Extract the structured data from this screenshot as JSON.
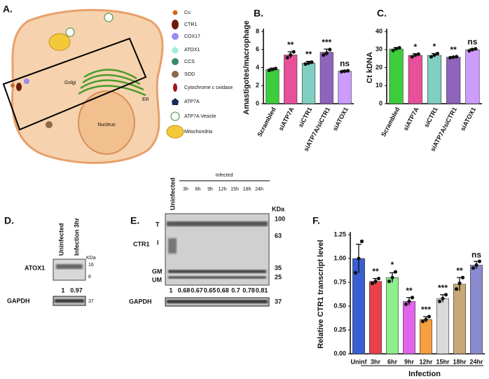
{
  "chart_data": [
    {
      "type": "bar",
      "panel": "B.",
      "ylabel": "Amastigotes/macrophage",
      "categories": [
        "Scrambled",
        "siATP7A",
        "siCTR1",
        "siATP7A/siCTR1",
        "siATOX1"
      ],
      "values": [
        3.8,
        5.4,
        4.5,
        5.7,
        3.6
      ],
      "errors": [
        0.15,
        0.35,
        0.2,
        0.35,
        0.1
      ],
      "points": [
        [
          3.7,
          3.8,
          3.9
        ],
        [
          5.1,
          5.4,
          5.75
        ],
        [
          4.4,
          4.5,
          4.6
        ],
        [
          5.4,
          5.6,
          6.0
        ],
        [
          3.55,
          3.6,
          3.65
        ]
      ],
      "annotations": [
        null,
        "**",
        "**",
        "***",
        "ns"
      ],
      "colors": [
        "#3ccc3c",
        "#e8509c",
        "#80cfc2",
        "#8e64bc",
        "#cc9cff"
      ],
      "ylim": [
        0,
        8
      ],
      "yticks": [
        0,
        2,
        4,
        6,
        8
      ]
    },
    {
      "type": "bar",
      "panel": "C.",
      "ylabel": "Ct kDNA",
      "categories": [
        "Scrambled",
        "siATP7A",
        "siCTR1",
        "siATP7A/siCTR1",
        "siATOX1"
      ],
      "values": [
        30.3,
        26.8,
        26.8,
        25.8,
        29.9
      ],
      "errors": [
        0.8,
        0.9,
        1.0,
        0.3,
        0.6
      ],
      "points": [
        [
          29.5,
          30.5,
          31
        ],
        [
          26,
          27,
          27.5
        ],
        [
          26,
          27,
          27.8
        ],
        [
          25.5,
          25.8,
          26.1
        ],
        [
          29.3,
          30,
          30.4
        ]
      ],
      "annotations": [
        null,
        "*",
        "*",
        "**",
        "ns"
      ],
      "colors": [
        "#3ccc3c",
        "#e8509c",
        "#80cfc2",
        "#8e64bc",
        "#cc9cff"
      ],
      "ylim": [
        0,
        40
      ],
      "yticks": [
        0,
        10,
        20,
        30,
        40
      ]
    },
    {
      "type": "bar",
      "panel": "F.",
      "ylabel": "Relative CTR1 transcript level",
      "xlabel": "Infection",
      "categories": [
        "Uninf",
        "3hr",
        "6hr",
        "9hr",
        "12hr",
        "15hr",
        "18hr",
        "24hr"
      ],
      "values": [
        1.0,
        0.76,
        0.8,
        0.55,
        0.36,
        0.58,
        0.73,
        0.93
      ],
      "errors": [
        0.15,
        0.03,
        0.05,
        0.04,
        0.03,
        0.04,
        0.07,
        0.04
      ],
      "points": [
        [
          0.85,
          1.0,
          1.18
        ],
        [
          0.74,
          0.76,
          0.79
        ],
        [
          0.76,
          0.8,
          0.86
        ],
        [
          0.52,
          0.55,
          0.59
        ],
        [
          0.34,
          0.36,
          0.39
        ],
        [
          0.55,
          0.58,
          0.62
        ],
        [
          0.68,
          0.74,
          0.8
        ],
        [
          0.9,
          0.93,
          0.97
        ]
      ],
      "annotations": [
        null,
        "**",
        "*",
        "**",
        "***",
        "***",
        "**",
        "ns"
      ],
      "colors": [
        "#3a5fd0",
        "#e8414a",
        "#8cf08c",
        "#e064ec",
        "#f5a040",
        "#dadada",
        "#c8a878",
        "#8a8ad0"
      ],
      "ylim": [
        0,
        1.25
      ],
      "yticks": [
        {
          "value": 0,
          "label": "0.00"
        },
        {
          "value": 0.25,
          "label": "0.25"
        },
        {
          "value": 0.5,
          "label": "0.50"
        },
        {
          "value": 0.75,
          "label": "0.75"
        },
        {
          "value": 1,
          "label": "1.00"
        },
        {
          "value": 1.25,
          "label": "1.25"
        }
      ]
    }
  ],
  "diagram": {
    "panel": "A.",
    "golgi": "Golgi",
    "er": "ER",
    "nucleus": "Nucleus",
    "legend": [
      "Cu",
      "CTR1",
      "COX17",
      "ATOX1",
      "CCS",
      "SOD",
      "Cytochrome c oxidase",
      "ATP7A",
      "ATP7A Vesicle",
      "Mitochondria"
    ]
  },
  "blot_d": {
    "panel": "D.",
    "lanes": [
      "Uninfected",
      "Infection 3hr"
    ],
    "kda": "KDa",
    "markers": [
      "16",
      "8"
    ],
    "protein": "ATOX1",
    "ratios": [
      1,
      0.97
    ],
    "loading": "GAPDH",
    "loading_kda": "37"
  },
  "blot_e": {
    "panel": "E.",
    "control": "Uninfected",
    "infected": "Infected",
    "times": [
      "3h",
      "6h",
      "9h",
      "12h",
      "15h",
      "18h",
      "24h"
    ],
    "kda": "KDa",
    "markers": [
      "100",
      "63",
      "35",
      "25"
    ],
    "protein": "CTR1",
    "bands": [
      "T",
      "I",
      "GM",
      "UM"
    ],
    "ratios": [
      1,
      0.68,
      0.67,
      0.65,
      0.68,
      0.7,
      0.78,
      0.81
    ],
    "loading": "GAPDH",
    "loading_kda": "37"
  }
}
